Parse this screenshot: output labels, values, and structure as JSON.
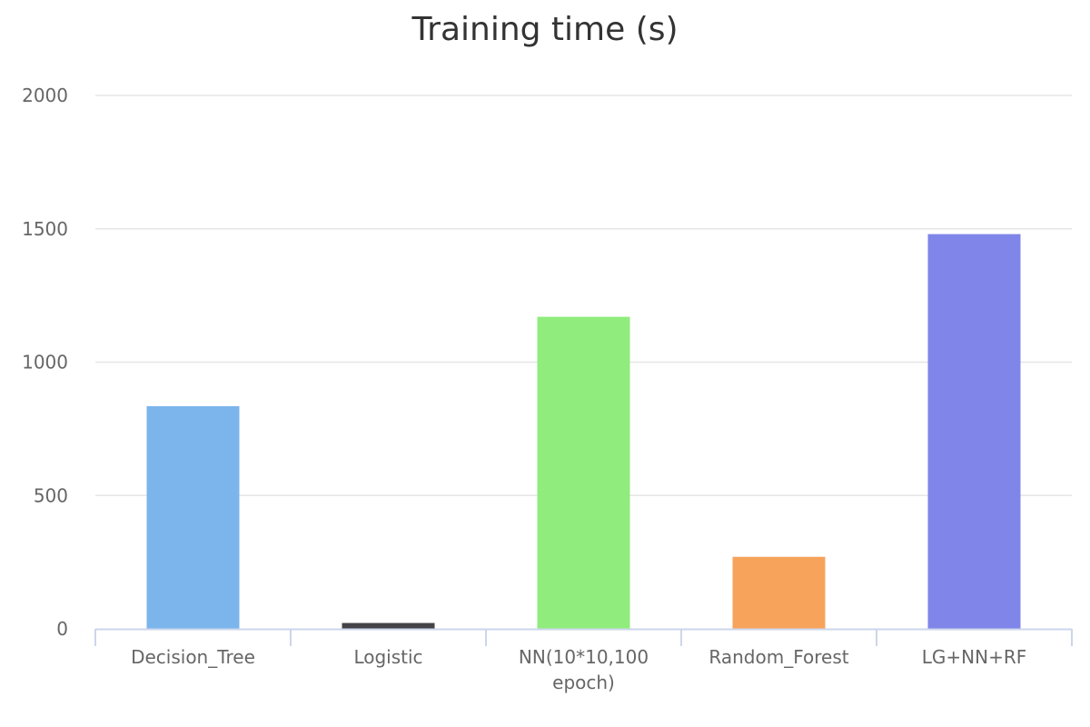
{
  "chart_data": {
    "type": "bar",
    "title": "Training time (s)",
    "categories": [
      "Decision_Tree",
      "Logistic",
      "NN(10*10,100 epoch)",
      "Random_Forest",
      "LG+NN+RF"
    ],
    "category_lines": [
      [
        "Decision_Tree"
      ],
      [
        "Logistic"
      ],
      [
        "NN(10*10,100",
        "epoch)"
      ],
      [
        "Random_Forest"
      ],
      [
        "LG+NN+RF"
      ]
    ],
    "values": [
      835,
      22,
      1170,
      270,
      1480
    ],
    "colors": [
      "#7cb5ec",
      "#434348",
      "#90ed7d",
      "#f7a35c",
      "#8085e9"
    ],
    "ylim": [
      0,
      2000
    ],
    "yticks": [
      0,
      500,
      1000,
      1500,
      2000
    ],
    "grid": true,
    "legend": "none"
  }
}
